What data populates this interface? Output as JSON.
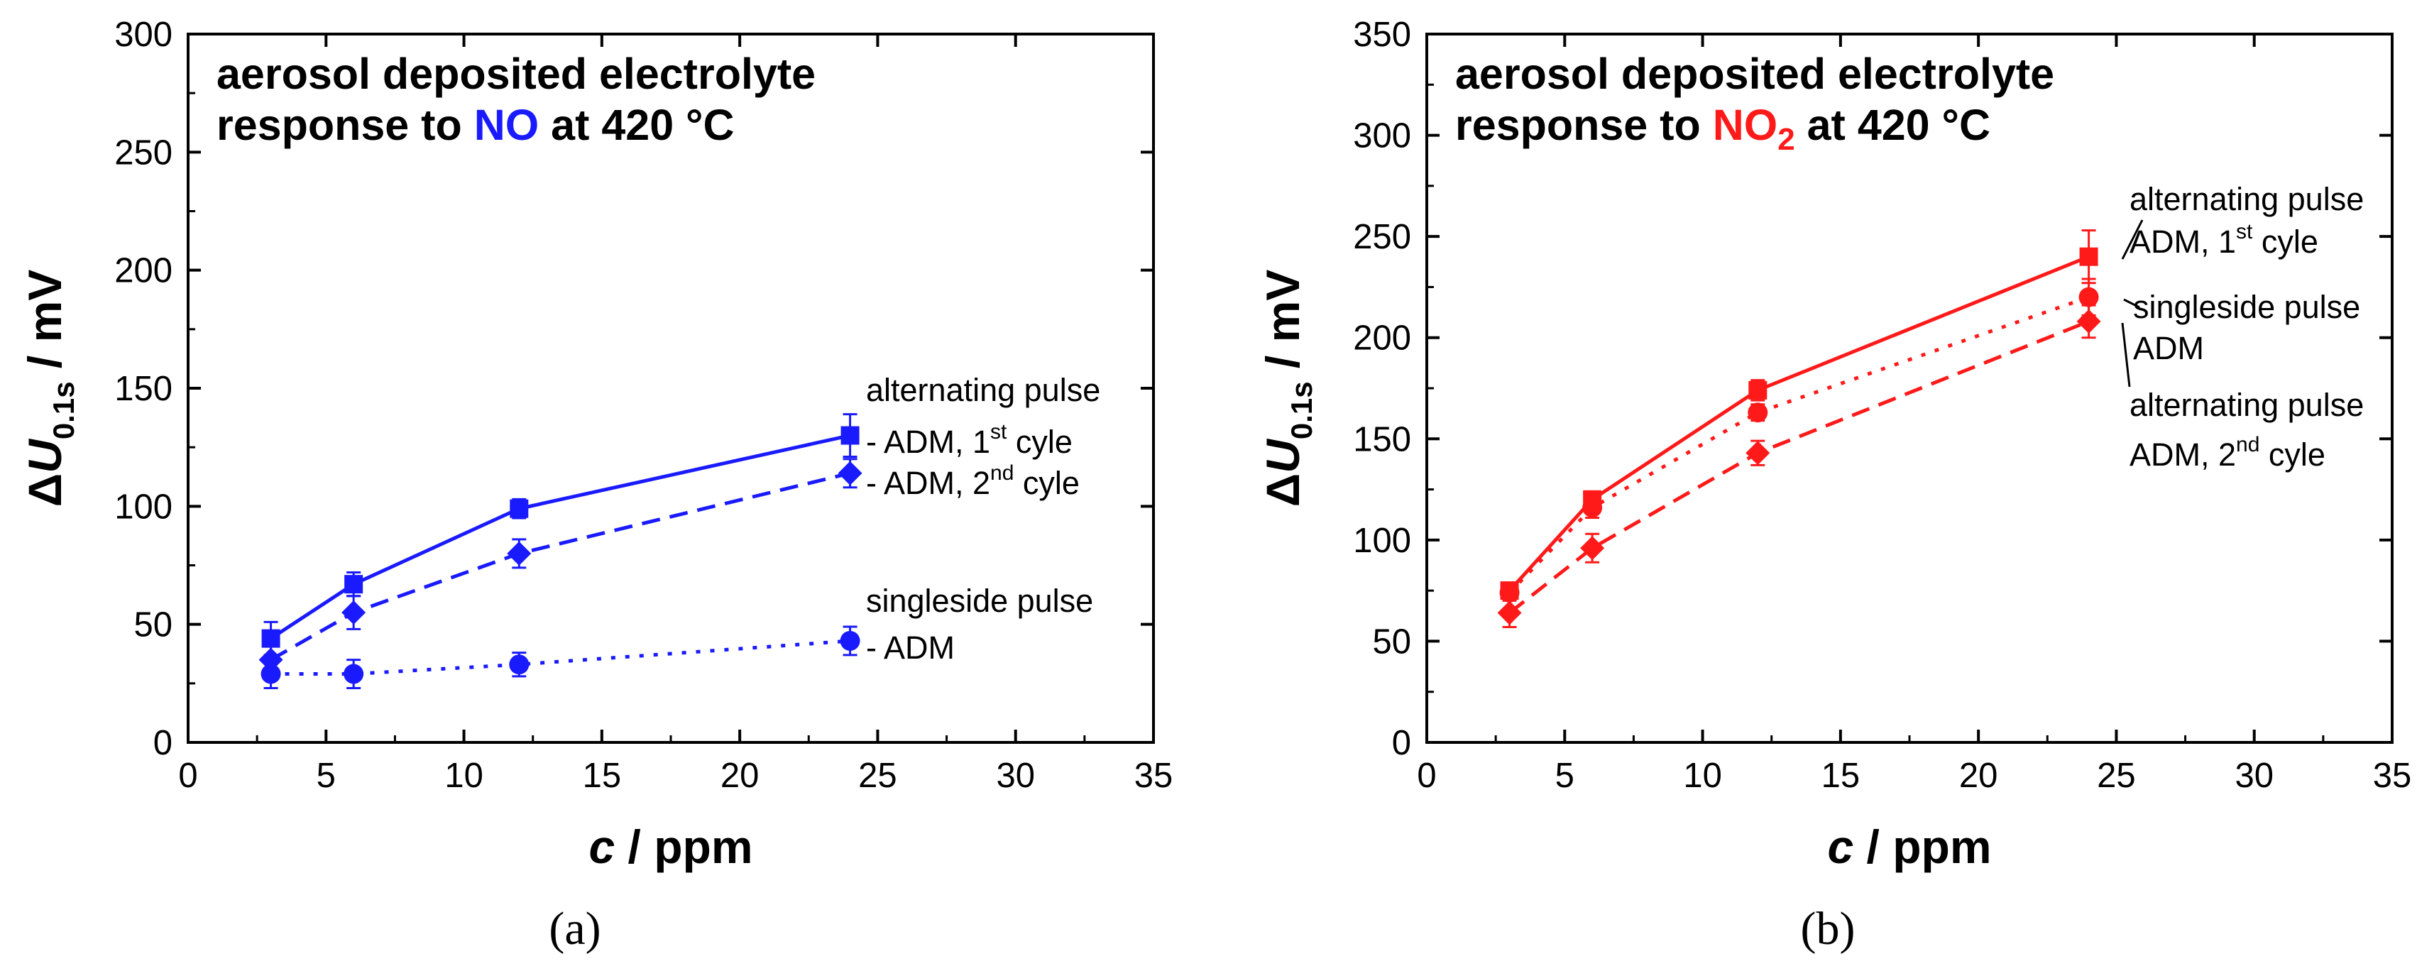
{
  "chart_data": [
    {
      "type": "line",
      "panel": "a",
      "caption": "(a)",
      "title_line1": "aerosol deposited electrolyte",
      "title_line2_pre": "response to ",
      "title_gas": "NO",
      "title_gas_sub": "",
      "title_line2_post": " at 420 °C",
      "title_gas_color": "#1a1aff",
      "xlabel_var": "c",
      "xlabel_unit": " / ppm",
      "ylabel_delta": "Δ",
      "ylabel_var": "U",
      "ylabel_sub": "0.1s",
      "ylabel_unit": " / mV",
      "xlim": [
        0,
        35
      ],
      "ylim": [
        0,
        300
      ],
      "xticks": [
        "0",
        "5",
        "10",
        "15",
        "20",
        "25",
        "30",
        "35"
      ],
      "yticks": [
        "0",
        "50",
        "100",
        "150",
        "200",
        "250",
        "300"
      ],
      "color": "#1a1aff",
      "series": [
        {
          "name": "alternating pulse - ADM, 1st cyle",
          "marker": "square",
          "dash": "solid",
          "x": [
            3,
            6,
            12,
            24
          ],
          "y": [
            44,
            67,
            99,
            130
          ],
          "err": [
            7,
            5,
            4,
            9
          ]
        },
        {
          "name": "alternating pulse - ADM, 2nd cyle",
          "marker": "diamond",
          "dash": "dashed",
          "x": [
            3,
            6,
            12,
            24
          ],
          "y": [
            35,
            55,
            80,
            114
          ],
          "err": [
            6,
            7,
            6,
            6
          ]
        },
        {
          "name": "singleside pulse - ADM",
          "marker": "circle",
          "dash": "dotted",
          "x": [
            3,
            6,
            12,
            24
          ],
          "y": [
            29,
            29,
            33,
            43
          ],
          "err": [
            6,
            6,
            5,
            6
          ]
        }
      ],
      "annotations": [
        {
          "id": "a-ann-1",
          "parts": [
            "alternating pulse"
          ]
        },
        {
          "id": "a-ann-2",
          "parts": [
            "- ADM, 1",
            "st",
            " cyle"
          ]
        },
        {
          "id": "a-ann-3",
          "parts": [
            "- ADM, 2",
            "nd",
            " cyle"
          ]
        },
        {
          "id": "a-ann-4",
          "parts": [
            "singleside pulse"
          ]
        },
        {
          "id": "a-ann-5",
          "parts": [
            "- ADM"
          ]
        }
      ]
    },
    {
      "type": "line",
      "panel": "b",
      "caption": "(b)",
      "title_line1": "aerosol deposited electrolyte",
      "title_line2_pre": "response to ",
      "title_gas": "NO",
      "title_gas_sub": "2",
      "title_line2_post": " at 420 °C",
      "title_gas_color": "#ff1a1a",
      "xlabel_var": "c",
      "xlabel_unit": " / ppm",
      "ylabel_delta": "Δ",
      "ylabel_var": "U",
      "ylabel_sub": "0.1s",
      "ylabel_unit": " / mV",
      "xlim": [
        0,
        35
      ],
      "ylim": [
        0,
        350
      ],
      "xticks": [
        "0",
        "5",
        "10",
        "15",
        "20",
        "25",
        "30",
        "35"
      ],
      "yticks": [
        "0",
        "50",
        "100",
        "150",
        "200",
        "250",
        "300",
        "350"
      ],
      "color": "#ff1a1a",
      "series": [
        {
          "name": "alternating pulse ADM, 1st cyle",
          "marker": "square",
          "dash": "solid",
          "x": [
            3,
            6,
            12,
            24
          ],
          "y": [
            75,
            120,
            174,
            240
          ],
          "err": [
            4,
            4,
            5,
            13
          ]
        },
        {
          "name": "singleside pulse ADM",
          "marker": "circle",
          "dash": "dotted",
          "x": [
            3,
            6,
            12,
            24
          ],
          "y": [
            74,
            116,
            163,
            220
          ],
          "err": [
            4,
            5,
            4,
            9
          ]
        },
        {
          "name": "alternating pulse ADM, 2nd cyle",
          "marker": "diamond",
          "dash": "dashed",
          "x": [
            3,
            6,
            12,
            24
          ],
          "y": [
            64,
            96,
            143,
            208
          ],
          "err": [
            7,
            7,
            6,
            8
          ]
        }
      ],
      "annotations": [
        {
          "id": "b-ann-1",
          "parts": [
            "alternating pulse"
          ]
        },
        {
          "id": "b-ann-2",
          "parts": [
            "ADM, 1",
            "st",
            " cyle"
          ]
        },
        {
          "id": "b-ann-3",
          "parts": [
            "singleside pulse"
          ]
        },
        {
          "id": "b-ann-4",
          "parts": [
            "ADM"
          ]
        },
        {
          "id": "b-ann-5",
          "parts": [
            "alternating pulse"
          ]
        },
        {
          "id": "b-ann-6",
          "parts": [
            "ADM, 2",
            "nd",
            " cyle"
          ]
        }
      ]
    }
  ]
}
